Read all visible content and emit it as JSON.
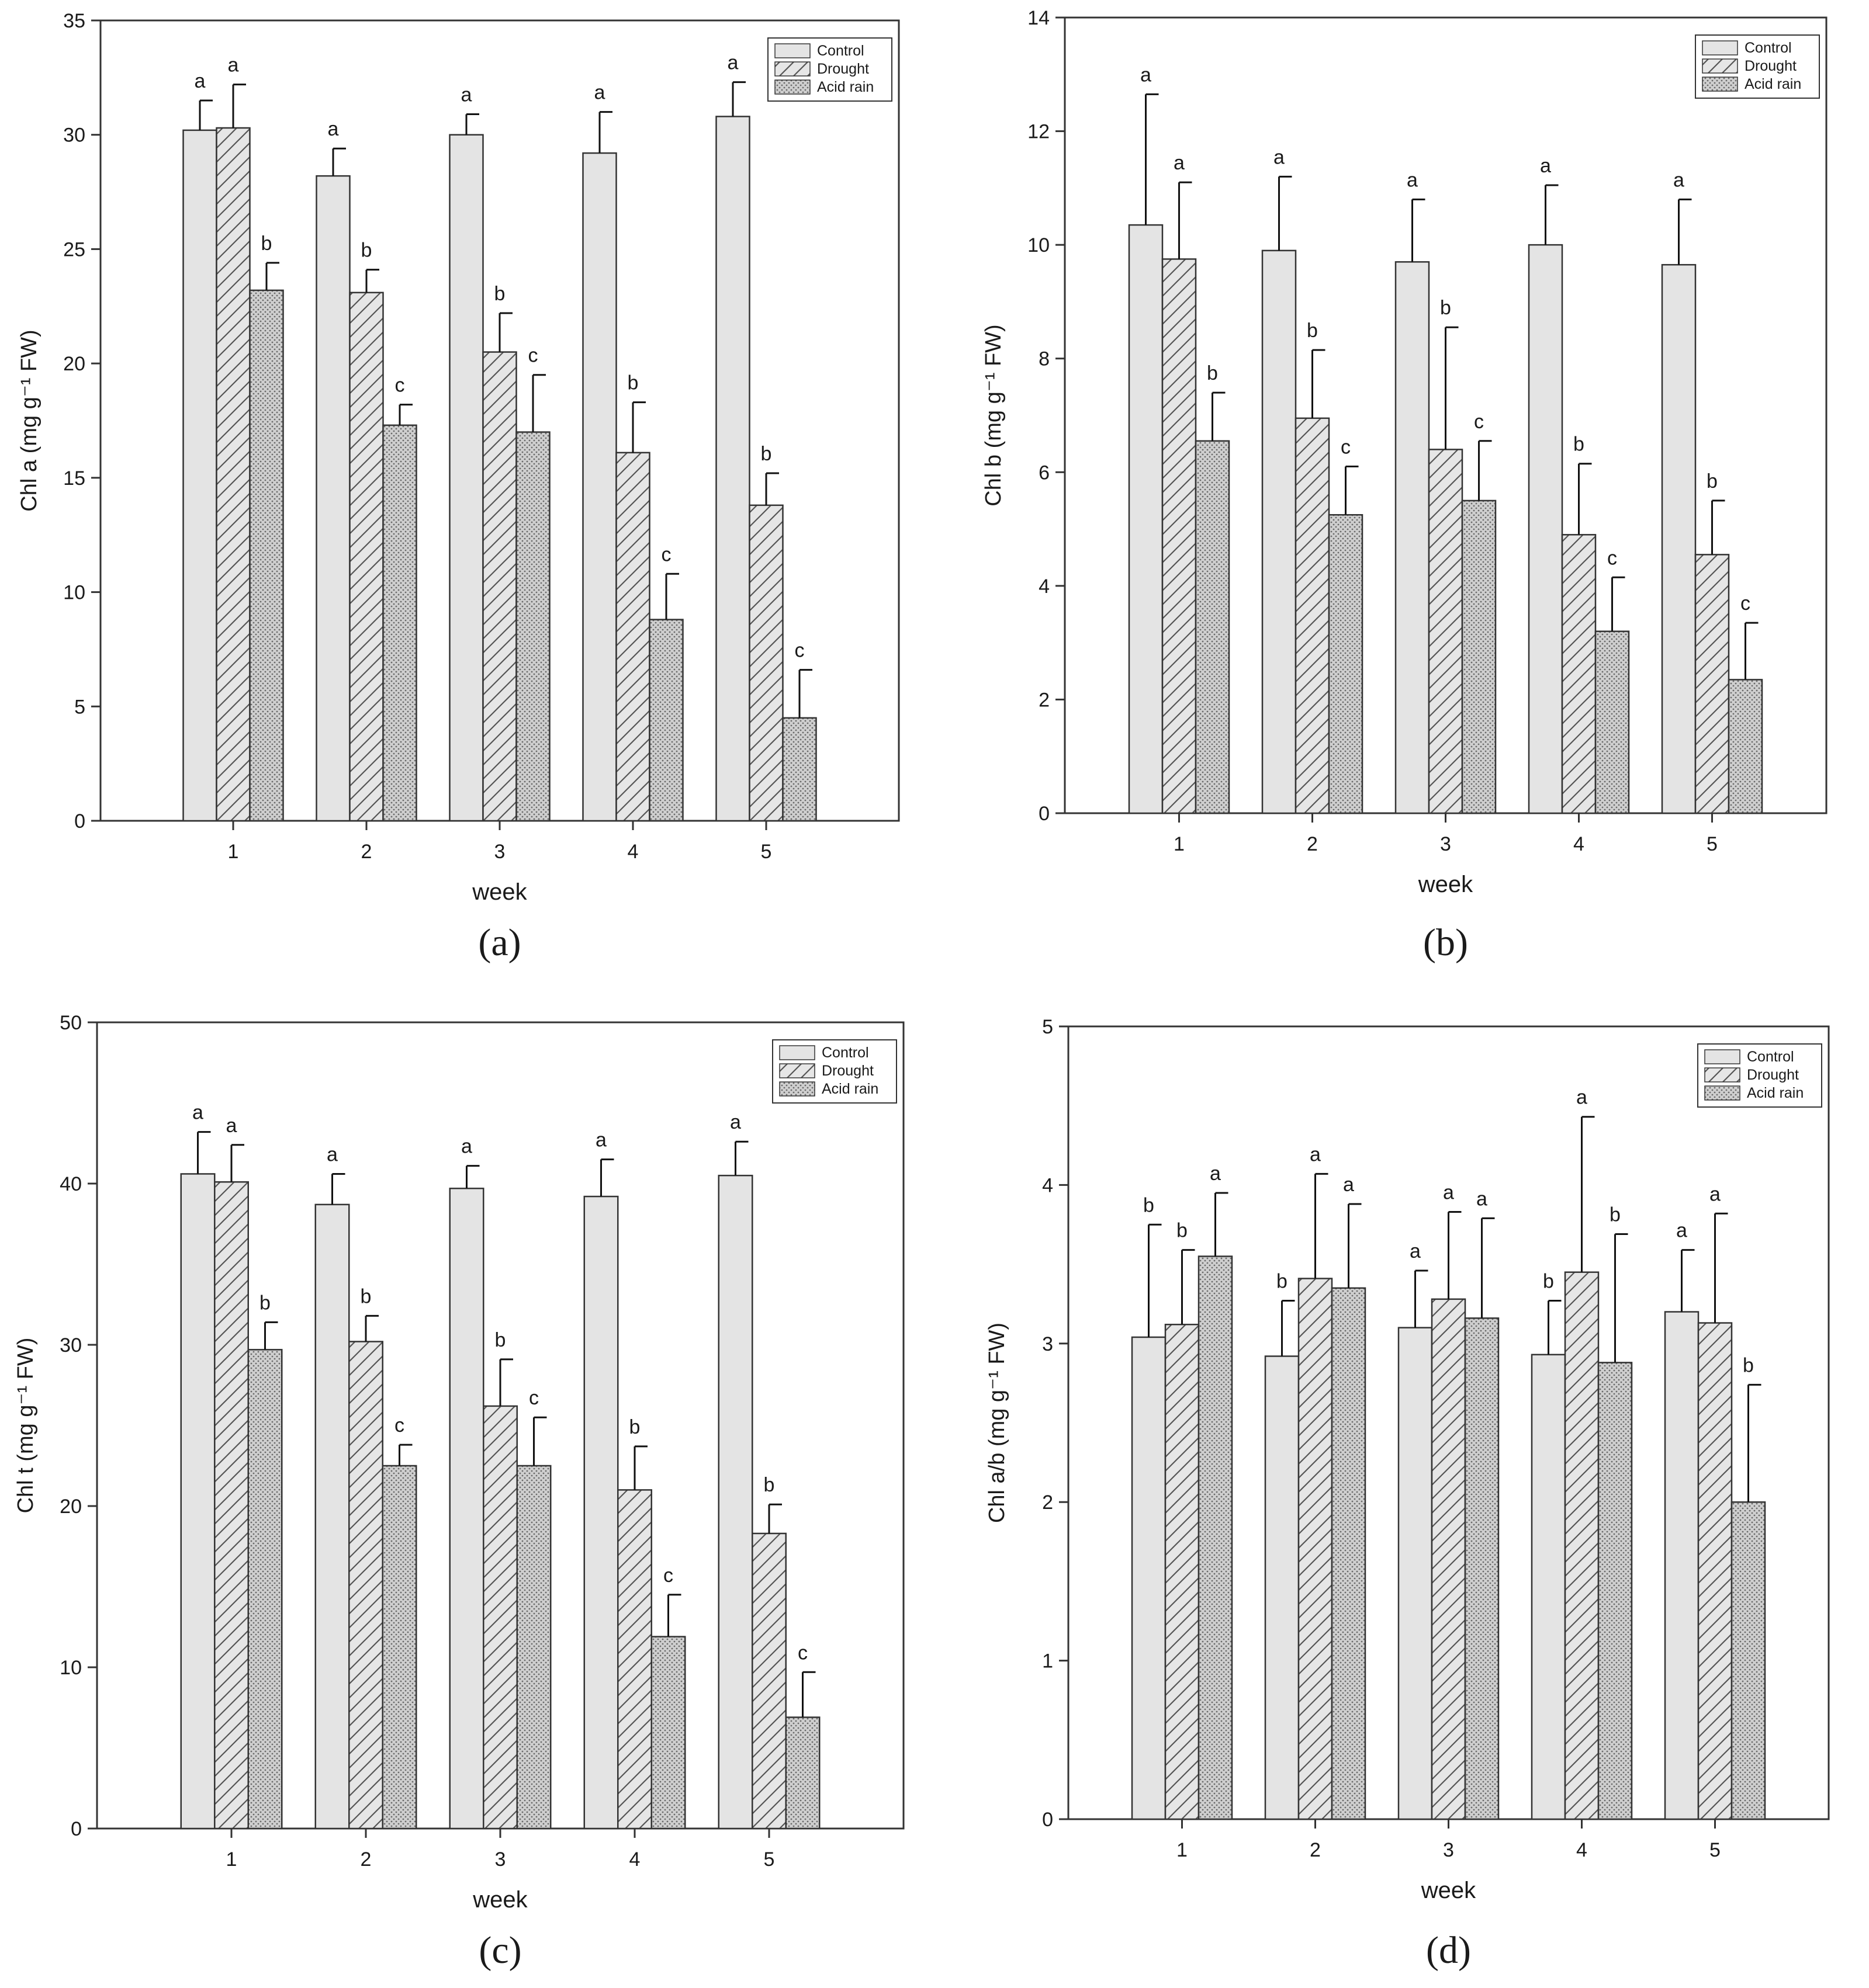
{
  "legend_labels": [
    "Control",
    "Drought",
    "Acid rain"
  ],
  "chart_data": [
    {
      "type": "bar",
      "panel": "a",
      "caption": "(a)",
      "xlabel": "week",
      "ylabel": "Chl a  (mg g⁻¹ FW)",
      "ylim": [
        0,
        35
      ],
      "yticks": [
        0,
        5,
        10,
        15,
        20,
        25,
        30,
        35
      ],
      "categories": [
        "1",
        "2",
        "3",
        "4",
        "5"
      ],
      "legend_position": "top-right",
      "series": [
        {
          "name": "Control",
          "values": [
            30.2,
            28.2,
            30.0,
            29.2,
            30.8
          ],
          "errors": [
            1.3,
            1.2,
            0.9,
            1.8,
            1.5
          ],
          "letters": [
            "a",
            "a",
            "a",
            "a",
            "a"
          ]
        },
        {
          "name": "Drought",
          "values": [
            30.3,
            23.1,
            20.5,
            16.1,
            13.8
          ],
          "errors": [
            1.9,
            1.0,
            1.7,
            2.2,
            1.4
          ],
          "letters": [
            "a",
            "b",
            "b",
            "b",
            "b"
          ]
        },
        {
          "name": "Acid rain",
          "values": [
            23.2,
            17.3,
            17.0,
            8.8,
            4.5
          ],
          "errors": [
            1.2,
            0.9,
            2.5,
            2.0,
            2.1
          ],
          "letters": [
            "b",
            "c",
            "c",
            "c",
            "c"
          ]
        }
      ]
    },
    {
      "type": "bar",
      "panel": "b",
      "caption": "(b)",
      "xlabel": "week",
      "ylabel": "Chl b  (mg g⁻¹ FW)",
      "ylim": [
        0,
        14
      ],
      "yticks": [
        0,
        2,
        4,
        6,
        8,
        10,
        12,
        14
      ],
      "categories": [
        "1",
        "2",
        "3",
        "4",
        "5"
      ],
      "legend_position": "top-right",
      "series": [
        {
          "name": "Control",
          "values": [
            10.35,
            9.9,
            9.7,
            10.0,
            9.65
          ],
          "errors": [
            2.3,
            1.3,
            1.1,
            1.05,
            1.15
          ],
          "letters": [
            "a",
            "a",
            "a",
            "a",
            "a"
          ]
        },
        {
          "name": "Drought",
          "values": [
            9.75,
            6.95,
            6.4,
            4.9,
            4.55
          ],
          "errors": [
            1.35,
            1.2,
            2.15,
            1.25,
            0.95
          ],
          "letters": [
            "a",
            "b",
            "b",
            "b",
            "b"
          ]
        },
        {
          "name": "Acid rain",
          "values": [
            6.55,
            5.25,
            5.5,
            3.2,
            2.35
          ],
          "errors": [
            0.85,
            0.85,
            1.05,
            0.95,
            1.0
          ],
          "letters": [
            "b",
            "c",
            "c",
            "c",
            "c"
          ]
        }
      ]
    },
    {
      "type": "bar",
      "panel": "c",
      "caption": "(c)",
      "xlabel": "week",
      "ylabel": "Chl t  (mg g⁻¹ FW)",
      "ylim": [
        0,
        50
      ],
      "yticks": [
        0,
        10,
        20,
        30,
        40,
        50
      ],
      "categories": [
        "1",
        "2",
        "3",
        "4",
        "5"
      ],
      "legend_position": "top-right",
      "series": [
        {
          "name": "Control",
          "values": [
            40.6,
            38.7,
            39.7,
            39.2,
            40.5
          ],
          "errors": [
            2.6,
            1.9,
            1.4,
            2.3,
            2.1
          ],
          "letters": [
            "a",
            "a",
            "a",
            "a",
            "a"
          ]
        },
        {
          "name": "Drought",
          "values": [
            40.1,
            30.2,
            26.2,
            21.0,
            18.3
          ],
          "errors": [
            2.3,
            1.6,
            2.9,
            2.7,
            1.8
          ],
          "letters": [
            "a",
            "b",
            "b",
            "b",
            "b"
          ]
        },
        {
          "name": "Acid rain",
          "values": [
            29.7,
            22.5,
            22.5,
            11.9,
            6.9
          ],
          "errors": [
            1.7,
            1.3,
            3.0,
            2.6,
            2.8
          ],
          "letters": [
            "b",
            "c",
            "c",
            "c",
            "c"
          ]
        }
      ]
    },
    {
      "type": "bar",
      "panel": "d",
      "caption": "(d)",
      "xlabel": "week",
      "ylabel": "Chl a/b  (mg g⁻¹ FW)",
      "ylim": [
        0,
        5
      ],
      "yticks": [
        0,
        1,
        2,
        3,
        4,
        5
      ],
      "categories": [
        "1",
        "2",
        "3",
        "4",
        "5"
      ],
      "legend_position": "top-right",
      "series": [
        {
          "name": "Control",
          "values": [
            3.04,
            2.92,
            3.1,
            2.93,
            3.2
          ],
          "errors": [
            0.71,
            0.35,
            0.36,
            0.34,
            0.39
          ],
          "letters": [
            "b",
            "b",
            "a",
            "b",
            "a"
          ]
        },
        {
          "name": "Drought",
          "values": [
            3.12,
            3.41,
            3.28,
            3.45,
            3.13
          ],
          "errors": [
            0.47,
            0.66,
            0.55,
            0.98,
            0.69
          ],
          "letters": [
            "b",
            "a",
            "a",
            "a",
            "a"
          ]
        },
        {
          "name": "Acid rain",
          "values": [
            3.55,
            3.35,
            3.16,
            2.88,
            2.0
          ],
          "errors": [
            0.4,
            0.53,
            0.63,
            0.81,
            0.74
          ],
          "letters": [
            "a",
            "a",
            "a",
            "b",
            "b"
          ]
        }
      ]
    }
  ]
}
